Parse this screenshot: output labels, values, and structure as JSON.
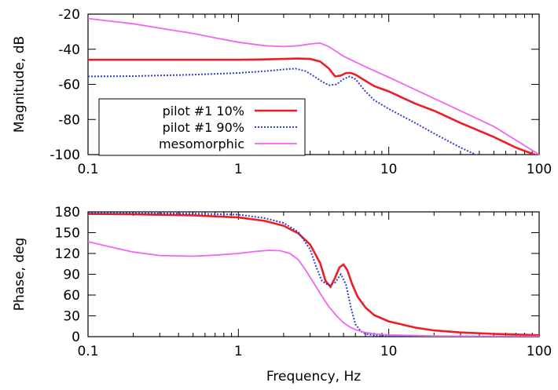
{
  "colors": {
    "pilot_10": "#ee1c24",
    "pilot_90": "#2f3fd4",
    "mesomorphic": "#f264f2"
  },
  "chart_data": [
    {
      "type": "line",
      "ylabel": "Magnitude, dB",
      "xlabel": "",
      "xscale": "log",
      "xlim": [
        0.1,
        100
      ],
      "ylim": [
        -100,
        -20
      ],
      "x_ticks": [
        "0.1",
        "1",
        "10",
        "100"
      ],
      "y_ticks": [
        "-20",
        "-40",
        "-60",
        "-80",
        "-100"
      ],
      "grid": false,
      "legend": "bottom-left",
      "series": [
        {
          "name": "pilot #1 10%",
          "color": "#ee1c24",
          "style": "solid",
          "x": [
            0.1,
            0.2,
            0.5,
            1,
            1.5,
            2,
            2.5,
            3,
            3.5,
            4,
            4.4,
            4.8,
            5.2,
            5.6,
            6,
            7,
            8,
            10,
            15,
            20,
            30,
            50,
            70,
            100
          ],
          "y": [
            -46,
            -46,
            -46,
            -46,
            -45.8,
            -45.5,
            -45.3,
            -45.5,
            -47,
            -51,
            -55.5,
            -55,
            -53.5,
            -53.5,
            -54.5,
            -58,
            -61,
            -64,
            -71,
            -75,
            -82,
            -90,
            -96,
            -101
          ]
        },
        {
          "name": "pilot #1 90%",
          "color": "#2f3fd4",
          "style": "dotted",
          "x": [
            0.1,
            0.2,
            0.5,
            1,
            1.5,
            2,
            2.4,
            2.8,
            3.2,
            3.6,
            4,
            4.5,
            5,
            5.5,
            6,
            7,
            8,
            10,
            15,
            20,
            30,
            40
          ],
          "y": [
            -55.5,
            -55.3,
            -54.5,
            -53.5,
            -52.5,
            -51.5,
            -51,
            -52.5,
            -55.5,
            -58.5,
            -60.5,
            -60,
            -57,
            -55.5,
            -57,
            -64,
            -69,
            -74,
            -82,
            -88,
            -96,
            -101
          ]
        },
        {
          "name": "mesomorphic",
          "color": "#f264f2",
          "style": "solid",
          "x": [
            0.1,
            0.2,
            0.3,
            0.5,
            0.7,
            1,
            1.5,
            2,
            2.5,
            3,
            3.5,
            4,
            5,
            7,
            10,
            20,
            50,
            100
          ],
          "y": [
            -22.5,
            -25.5,
            -28,
            -31,
            -33.5,
            -36,
            -38,
            -38.5,
            -38,
            -37,
            -36.5,
            -38.5,
            -44,
            -50,
            -56,
            -68,
            -84,
            -100
          ]
        }
      ]
    },
    {
      "type": "line",
      "ylabel": "Phase, deg",
      "xlabel": "Frequency, Hz",
      "xscale": "log",
      "xlim": [
        0.1,
        100
      ],
      "ylim": [
        0,
        180
      ],
      "x_ticks": [
        "0.1",
        "1",
        "10",
        "100"
      ],
      "y_ticks": [
        "180",
        "150",
        "120",
        "90",
        "60",
        "30",
        "0"
      ],
      "grid": false,
      "legend": "none",
      "series": [
        {
          "color": "#ee1c24",
          "style": "solid",
          "x": [
            0.1,
            0.2,
            0.5,
            1,
            1.5,
            2,
            2.5,
            3,
            3.5,
            3.8,
            4.1,
            4.4,
            4.7,
            5,
            5.3,
            5.7,
            6.2,
            7,
            8,
            10,
            15,
            20,
            30,
            50,
            100
          ],
          "y": [
            177,
            176.5,
            175,
            172,
            167,
            160,
            149,
            133,
            106,
            80,
            72,
            85,
            100,
            104,
            96,
            76,
            58,
            42,
            31,
            22,
            13,
            9,
            6,
            4,
            2
          ]
        },
        {
          "color": "#2f3fd4",
          "style": "dotted",
          "x": [
            0.1,
            0.2,
            0.5,
            1,
            1.5,
            2,
            2.5,
            3,
            3.3,
            3.6,
            4,
            4.4,
            4.8,
            5.2,
            5.6,
            6,
            6.5,
            7,
            8,
            10,
            20,
            50,
            100
          ],
          "y": [
            178,
            178,
            177.5,
            176,
            171,
            164,
            151,
            126,
            100,
            80,
            74,
            78,
            90,
            75,
            42,
            18,
            8,
            4,
            2,
            1,
            0.5,
            0.3,
            0.2
          ]
        },
        {
          "color": "#f264f2",
          "style": "solid",
          "x": [
            0.1,
            0.15,
            0.2,
            0.3,
            0.5,
            0.7,
            1,
            1.3,
            1.6,
            1.9,
            2.2,
            2.5,
            2.8,
            3.2,
            3.6,
            4,
            4.5,
            5,
            5.5,
            6,
            7,
            8,
            10,
            15,
            20,
            50,
            100
          ],
          "y": [
            137,
            128,
            122,
            117,
            116,
            117.5,
            120,
            123,
            124.5,
            124,
            120,
            111,
            96,
            76,
            58,
            43,
            30,
            20,
            14,
            10,
            6,
            4,
            2.5,
            1.5,
            1,
            0.5,
            0.3
          ]
        }
      ]
    }
  ]
}
